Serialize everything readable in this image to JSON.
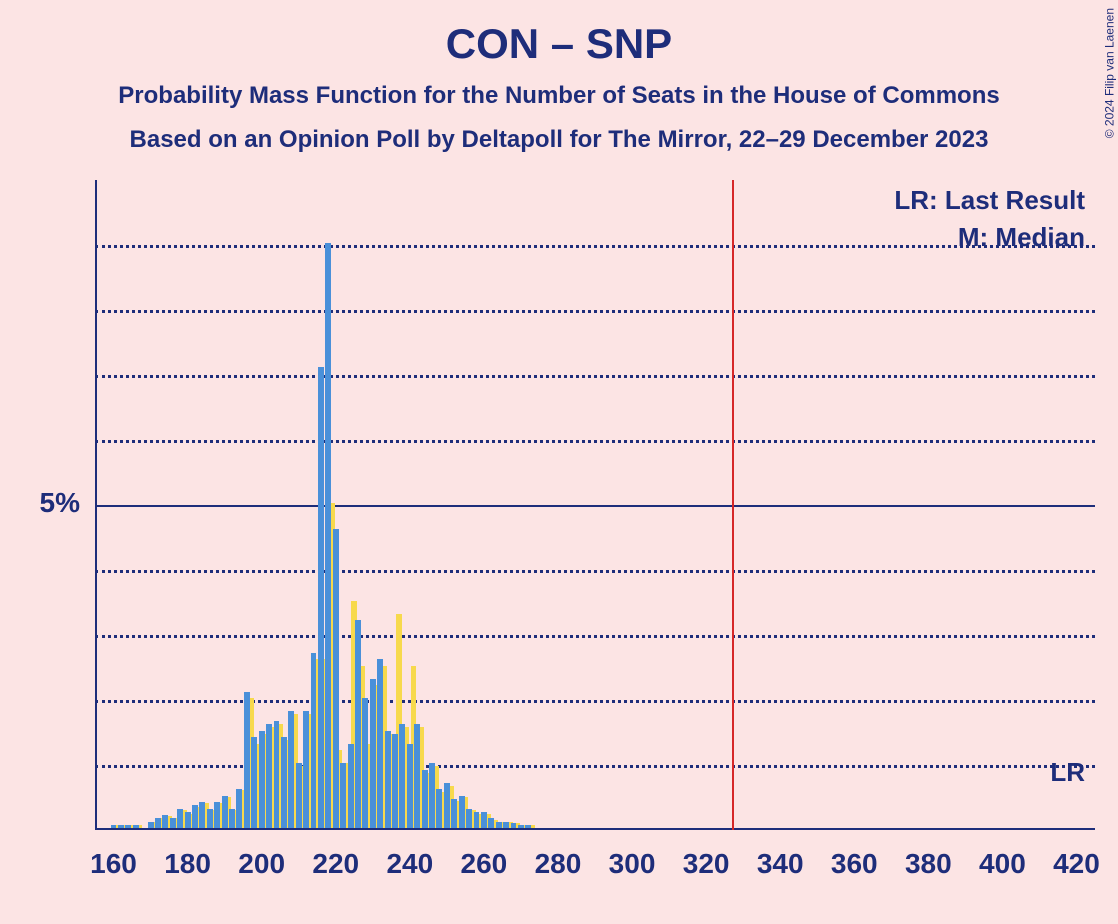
{
  "title": "CON – SNP",
  "subtitle1": "Probability Mass Function for the Number of Seats in the House of Commons",
  "subtitle2": "Based on an Opinion Poll by Deltapoll for The Mirror, 22–29 December 2023",
  "copyright": "© 2024 Filip van Laenen",
  "legend": {
    "lr": "LR: Last Result",
    "m": "M: Median",
    "lr_short": "LR"
  },
  "chart": {
    "type": "bar-pmf",
    "background_color": "#fce4e4",
    "text_color": "#1e2d7a",
    "x_axis": {
      "min": 155,
      "max": 425,
      "ticks": [
        160,
        180,
        200,
        220,
        240,
        260,
        280,
        300,
        320,
        340,
        360,
        380,
        400,
        420
      ],
      "label_fontsize": 28
    },
    "y_axis": {
      "min": 0,
      "max": 10,
      "major_tick": {
        "value": 5,
        "label": "5%"
      },
      "gridlines": [
        1,
        2,
        3,
        4,
        5,
        6,
        7,
        8,
        9
      ],
      "solid_gridlines": [
        5
      ],
      "label_fontsize": 28
    },
    "lr_line": {
      "x": 327,
      "color": "#d62728",
      "width": 2
    },
    "bar_width": 1.6,
    "series": {
      "blue": {
        "color": "#4a90d9",
        "data": [
          {
            "x": 160,
            "y": 0.05
          },
          {
            "x": 162,
            "y": 0.05
          },
          {
            "x": 164,
            "y": 0.05
          },
          {
            "x": 166,
            "y": 0.05
          },
          {
            "x": 170,
            "y": 0.1
          },
          {
            "x": 172,
            "y": 0.15
          },
          {
            "x": 174,
            "y": 0.2
          },
          {
            "x": 176,
            "y": 0.15
          },
          {
            "x": 178,
            "y": 0.3
          },
          {
            "x": 180,
            "y": 0.25
          },
          {
            "x": 182,
            "y": 0.35
          },
          {
            "x": 184,
            "y": 0.4
          },
          {
            "x": 186,
            "y": 0.3
          },
          {
            "x": 188,
            "y": 0.4
          },
          {
            "x": 190,
            "y": 0.5
          },
          {
            "x": 192,
            "y": 0.3
          },
          {
            "x": 194,
            "y": 0.6
          },
          {
            "x": 196,
            "y": 2.1
          },
          {
            "x": 198,
            "y": 1.4
          },
          {
            "x": 200,
            "y": 1.5
          },
          {
            "x": 202,
            "y": 1.6
          },
          {
            "x": 204,
            "y": 1.65
          },
          {
            "x": 206,
            "y": 1.4
          },
          {
            "x": 208,
            "y": 1.8
          },
          {
            "x": 210,
            "y": 1.0
          },
          {
            "x": 212,
            "y": 1.8
          },
          {
            "x": 214,
            "y": 2.7
          },
          {
            "x": 216,
            "y": 7.1
          },
          {
            "x": 218,
            "y": 9.0
          },
          {
            "x": 220,
            "y": 4.6
          },
          {
            "x": 222,
            "y": 1.0
          },
          {
            "x": 224,
            "y": 1.3
          },
          {
            "x": 226,
            "y": 3.2
          },
          {
            "x": 228,
            "y": 2.0
          },
          {
            "x": 230,
            "y": 2.3
          },
          {
            "x": 232,
            "y": 2.6
          },
          {
            "x": 234,
            "y": 1.5
          },
          {
            "x": 236,
            "y": 1.45
          },
          {
            "x": 238,
            "y": 1.6
          },
          {
            "x": 240,
            "y": 1.3
          },
          {
            "x": 242,
            "y": 1.6
          },
          {
            "x": 244,
            "y": 0.9
          },
          {
            "x": 246,
            "y": 1.0
          },
          {
            "x": 248,
            "y": 0.6
          },
          {
            "x": 250,
            "y": 0.7
          },
          {
            "x": 252,
            "y": 0.45
          },
          {
            "x": 254,
            "y": 0.5
          },
          {
            "x": 256,
            "y": 0.3
          },
          {
            "x": 258,
            "y": 0.25
          },
          {
            "x": 260,
            "y": 0.25
          },
          {
            "x": 262,
            "y": 0.15
          },
          {
            "x": 264,
            "y": 0.1
          },
          {
            "x": 266,
            "y": 0.1
          },
          {
            "x": 268,
            "y": 0.08
          },
          {
            "x": 270,
            "y": 0.05
          },
          {
            "x": 272,
            "y": 0.05
          }
        ]
      },
      "yellow": {
        "color": "#f7d94c",
        "data": [
          {
            "x": 161,
            "y": 0.05
          },
          {
            "x": 163,
            "y": 0.05
          },
          {
            "x": 165,
            "y": 0.05
          },
          {
            "x": 167,
            "y": 0.05
          },
          {
            "x": 171,
            "y": 0.1
          },
          {
            "x": 173,
            "y": 0.15
          },
          {
            "x": 175,
            "y": 0.18
          },
          {
            "x": 177,
            "y": 0.15
          },
          {
            "x": 179,
            "y": 0.28
          },
          {
            "x": 181,
            "y": 0.22
          },
          {
            "x": 183,
            "y": 0.33
          },
          {
            "x": 185,
            "y": 0.38
          },
          {
            "x": 187,
            "y": 0.28
          },
          {
            "x": 189,
            "y": 0.38
          },
          {
            "x": 191,
            "y": 0.48
          },
          {
            "x": 193,
            "y": 0.28
          },
          {
            "x": 195,
            "y": 0.58
          },
          {
            "x": 197,
            "y": 2.0
          },
          {
            "x": 199,
            "y": 1.3
          },
          {
            "x": 201,
            "y": 1.45
          },
          {
            "x": 203,
            "y": 1.55
          },
          {
            "x": 205,
            "y": 1.6
          },
          {
            "x": 207,
            "y": 1.35
          },
          {
            "x": 209,
            "y": 1.75
          },
          {
            "x": 211,
            "y": 0.95
          },
          {
            "x": 213,
            "y": 1.75
          },
          {
            "x": 215,
            "y": 2.6
          },
          {
            "x": 217,
            "y": 2.6
          },
          {
            "x": 219,
            "y": 5.0
          },
          {
            "x": 221,
            "y": 1.2
          },
          {
            "x": 223,
            "y": 1.0
          },
          {
            "x": 225,
            "y": 3.5
          },
          {
            "x": 227,
            "y": 2.5
          },
          {
            "x": 229,
            "y": 1.3
          },
          {
            "x": 231,
            "y": 2.2
          },
          {
            "x": 233,
            "y": 2.5
          },
          {
            "x": 235,
            "y": 1.45
          },
          {
            "x": 237,
            "y": 3.3
          },
          {
            "x": 239,
            "y": 1.55
          },
          {
            "x": 241,
            "y": 2.5
          },
          {
            "x": 243,
            "y": 1.55
          },
          {
            "x": 245,
            "y": 0.85
          },
          {
            "x": 247,
            "y": 0.95
          },
          {
            "x": 249,
            "y": 0.55
          },
          {
            "x": 251,
            "y": 0.65
          },
          {
            "x": 253,
            "y": 0.42
          },
          {
            "x": 255,
            "y": 0.48
          },
          {
            "x": 257,
            "y": 0.28
          },
          {
            "x": 259,
            "y": 0.22
          },
          {
            "x": 261,
            "y": 0.22
          },
          {
            "x": 263,
            "y": 0.12
          },
          {
            "x": 265,
            "y": 0.1
          },
          {
            "x": 267,
            "y": 0.1
          },
          {
            "x": 269,
            "y": 0.08
          },
          {
            "x": 271,
            "y": 0.05
          },
          {
            "x": 273,
            "y": 0.05
          }
        ]
      }
    }
  }
}
